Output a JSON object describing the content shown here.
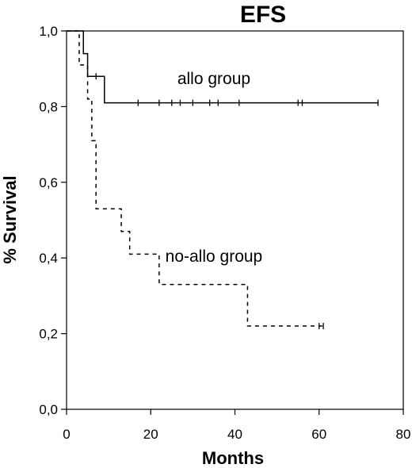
{
  "chart_data": {
    "type": "line",
    "subtype": "kaplan-meier step",
    "title": "EFS",
    "xlabel": "Months",
    "ylabel": "% Survival",
    "xlim": [
      0,
      80
    ],
    "ylim": [
      0.0,
      1.0
    ],
    "x_ticks": [
      0,
      20,
      40,
      60,
      80
    ],
    "x_tick_labels": [
      "0",
      "20",
      "40",
      "60",
      "80"
    ],
    "y_ticks": [
      0.0,
      0.2,
      0.4,
      0.6,
      0.8,
      1.0
    ],
    "y_tick_labels": [
      "0,0",
      "0,2",
      "0,4",
      "0,6",
      "0,8",
      "1,0"
    ],
    "grid": false,
    "legend": "none",
    "series": [
      {
        "name": "allo group",
        "line_style": "solid",
        "color": "#000000",
        "steps": [
          [
            0,
            1.0
          ],
          [
            4,
            0.94
          ],
          [
            5,
            0.88
          ],
          [
            9,
            0.81
          ],
          [
            74,
            0.81
          ]
        ],
        "censored_x": [
          7,
          17,
          22,
          25,
          27,
          30,
          34,
          36,
          41,
          55,
          56,
          74
        ]
      },
      {
        "name": "no-allo group",
        "line_style": "dashed",
        "color": "#000000",
        "steps": [
          [
            0,
            1.0
          ],
          [
            3,
            0.91
          ],
          [
            5,
            0.82
          ],
          [
            6,
            0.71
          ],
          [
            7,
            0.53
          ],
          [
            13,
            0.47
          ],
          [
            15,
            0.41
          ],
          [
            22,
            0.33
          ],
          [
            43,
            0.22
          ],
          [
            61,
            0.22
          ]
        ],
        "censored_x": [
          60,
          61
        ]
      }
    ],
    "annotations": [
      {
        "text": "allo group",
        "x": 35.0,
        "y": 0.86
      },
      {
        "text": "no-allo group",
        "x": 35.0,
        "y": 0.39
      }
    ]
  }
}
